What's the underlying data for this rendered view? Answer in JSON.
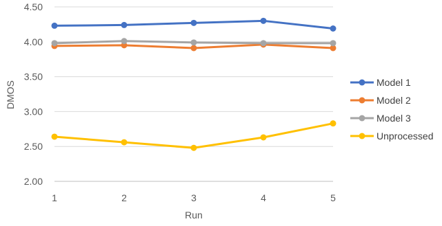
{
  "chart_data": {
    "type": "line",
    "title": "",
    "xlabel": "Run",
    "ylabel": "DMOS",
    "x": [
      1,
      2,
      3,
      4,
      5
    ],
    "x_tick_labels": [
      "1",
      "2",
      "3",
      "4",
      "5"
    ],
    "ylim": [
      2.0,
      4.5
    ],
    "y_ticks": [
      2.0,
      2.5,
      3.0,
      3.5,
      4.0,
      4.5
    ],
    "y_tick_labels": [
      "2.00",
      "2.50",
      "3.00",
      "3.50",
      "4.00",
      "4.50"
    ],
    "grid": "horizontal",
    "legend_position": "right",
    "series": [
      {
        "name": "Model 1",
        "color": "#4472c4",
        "values": [
          4.23,
          4.24,
          4.27,
          4.3,
          4.19
        ]
      },
      {
        "name": "Model 2",
        "color": "#ed7d31",
        "values": [
          3.94,
          3.95,
          3.91,
          3.96,
          3.91
        ]
      },
      {
        "name": "Model 3",
        "color": "#a5a5a5",
        "values": [
          3.98,
          4.01,
          3.99,
          3.98,
          3.98
        ]
      },
      {
        "name": "Unprocessed",
        "color": "#ffc000",
        "values": [
          2.64,
          2.56,
          2.48,
          2.63,
          2.83
        ]
      }
    ]
  }
}
